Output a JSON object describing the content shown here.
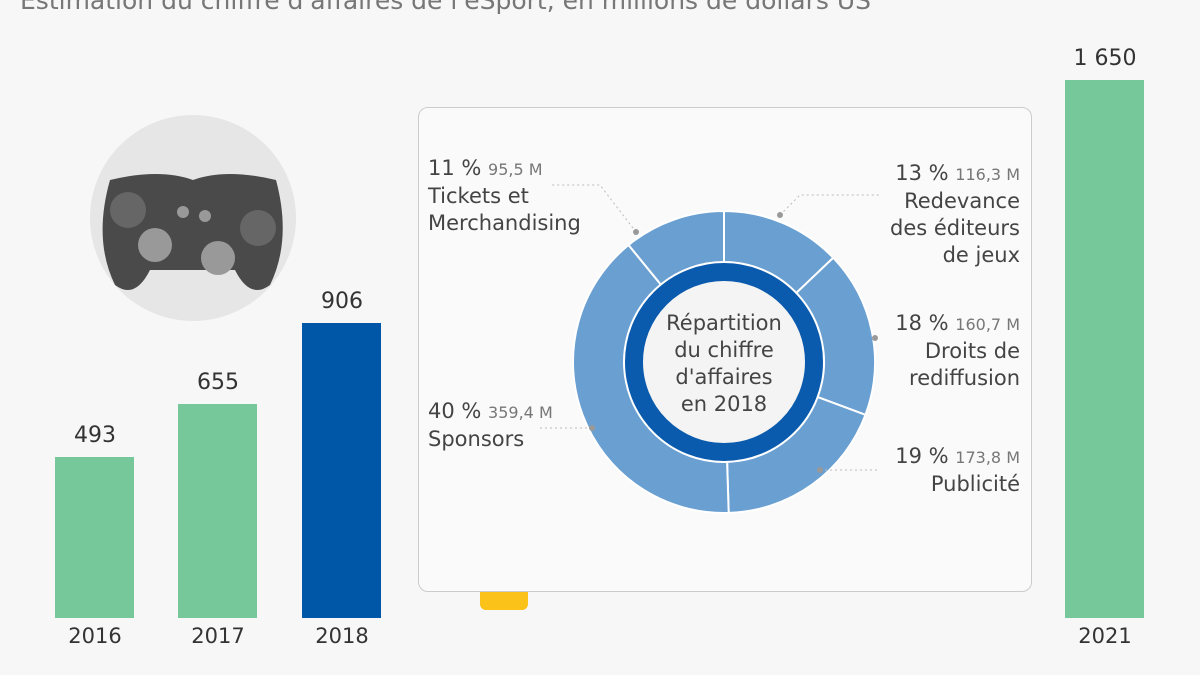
{
  "chart_data": [
    {
      "type": "bar",
      "title": "Estimation du chiffre d'affaires de l'eSport, en millions de dollars US",
      "categories": [
        "2016",
        "2017",
        "2018",
        "2021"
      ],
      "values": [
        493,
        655,
        906,
        1650
      ],
      "value_labels": [
        "493",
        "655",
        "906",
        "1 650"
      ],
      "colors": [
        "#76c799",
        "#76c799",
        "#0057a8",
        "#76c799"
      ],
      "ylim": [
        0,
        1650
      ]
    },
    {
      "type": "pie",
      "title": "Répartition du chiffre d'affaires en 2018",
      "center_lines": [
        "Répartition",
        "du chiffre",
        "d'affaires",
        "en 2018"
      ],
      "slices": [
        {
          "label": "Redevance des éditeurs de jeux",
          "lines": [
            "Redevance",
            "des éditeurs",
            "de jeux"
          ],
          "percent": 13,
          "pct_label": "13 %",
          "amount": "116,3 M"
        },
        {
          "label": "Droits de rediffusion",
          "lines": [
            "Droits de",
            "rediffusion"
          ],
          "percent": 18,
          "pct_label": "18 %",
          "amount": "160,7 M"
        },
        {
          "label": "Publicité",
          "lines": [
            "Publicité"
          ],
          "percent": 19,
          "pct_label": "19 %",
          "amount": "173,8 M"
        },
        {
          "label": "Sponsors",
          "lines": [
            "Sponsors"
          ],
          "percent": 40,
          "pct_label": "40 %",
          "amount": "359,4 M"
        },
        {
          "label": "Tickets et Merchandising",
          "lines": [
            "Tickets et",
            "Merchandising"
          ],
          "percent": 11,
          "pct_label": "11 %",
          "amount": "95,5 M"
        }
      ],
      "color": "#6a9fd1",
      "inner_color": "#0a5aad"
    }
  ]
}
